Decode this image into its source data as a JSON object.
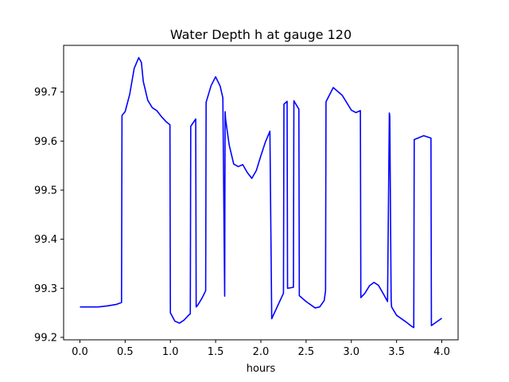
{
  "chart_data": {
    "type": "line",
    "title": "Water Depth h at gauge 120",
    "xlabel": "hours",
    "ylabel": "",
    "xlim": [
      -0.18,
      4.18
    ],
    "ylim": [
      99.195,
      99.795
    ],
    "x_ticks": [
      0.0,
      0.5,
      1.0,
      1.5,
      2.0,
      2.5,
      3.0,
      3.5,
      4.0
    ],
    "x_tick_labels": [
      "0.0",
      "0.5",
      "1.0",
      "1.5",
      "2.0",
      "2.5",
      "3.0",
      "3.5",
      "4.0"
    ],
    "y_ticks": [
      99.2,
      99.3,
      99.4,
      99.5,
      99.6,
      99.7
    ],
    "y_tick_labels": [
      "99.2",
      "99.3",
      "99.4",
      "99.5",
      "99.6",
      "99.7"
    ],
    "grid": false,
    "legend": "none",
    "series": [
      {
        "color": "#0000ff",
        "x": [
          0.0,
          0.1,
          0.2,
          0.3,
          0.4,
          0.46,
          0.465,
          0.5,
          0.55,
          0.6,
          0.65,
          0.68,
          0.7,
          0.75,
          0.8,
          0.85,
          0.9,
          0.95,
          0.995,
          1.0,
          1.05,
          1.1,
          1.15,
          1.2,
          1.22,
          1.225,
          1.28,
          1.285,
          1.3,
          1.35,
          1.39,
          1.395,
          1.45,
          1.5,
          1.55,
          1.58,
          1.6,
          1.605,
          1.61,
          1.65,
          1.7,
          1.75,
          1.8,
          1.85,
          1.9,
          1.95,
          2.0,
          2.05,
          2.1,
          2.12,
          2.125,
          2.2,
          2.25,
          2.255,
          2.29,
          2.295,
          2.36,
          2.365,
          2.42,
          2.425,
          2.5,
          2.6,
          2.65,
          2.7,
          2.715,
          2.72,
          2.8,
          2.9,
          3.0,
          3.05,
          3.1,
          3.105,
          3.15,
          3.2,
          3.25,
          3.3,
          3.35,
          3.4,
          3.42,
          3.425,
          3.44,
          3.445,
          3.5,
          3.6,
          3.67,
          3.69,
          3.695,
          3.8,
          3.88,
          3.885,
          3.9,
          4.0
        ],
        "y": [
          99.262,
          99.262,
          99.262,
          99.264,
          99.267,
          99.271,
          99.652,
          99.66,
          99.695,
          99.748,
          99.77,
          99.76,
          99.722,
          99.683,
          99.668,
          99.662,
          99.65,
          99.64,
          99.633,
          99.25,
          99.233,
          99.229,
          99.235,
          99.245,
          99.248,
          99.63,
          99.645,
          99.262,
          99.265,
          99.28,
          99.295,
          99.679,
          99.713,
          99.731,
          99.712,
          99.688,
          99.284,
          99.66,
          99.645,
          99.592,
          99.553,
          99.548,
          99.552,
          99.536,
          99.524,
          99.54,
          99.57,
          99.598,
          99.62,
          99.238,
          99.24,
          99.27,
          99.29,
          99.675,
          99.681,
          99.3,
          99.302,
          99.682,
          99.665,
          99.285,
          99.273,
          99.26,
          99.262,
          99.275,
          99.295,
          99.68,
          99.709,
          99.693,
          99.663,
          99.658,
          99.662,
          99.281,
          99.29,
          99.305,
          99.312,
          99.306,
          99.29,
          99.273,
          99.657,
          99.65,
          99.276,
          99.262,
          99.245,
          99.232,
          99.222,
          99.22,
          99.603,
          99.611,
          99.606,
          99.224,
          99.226,
          99.239
        ]
      }
    ]
  }
}
